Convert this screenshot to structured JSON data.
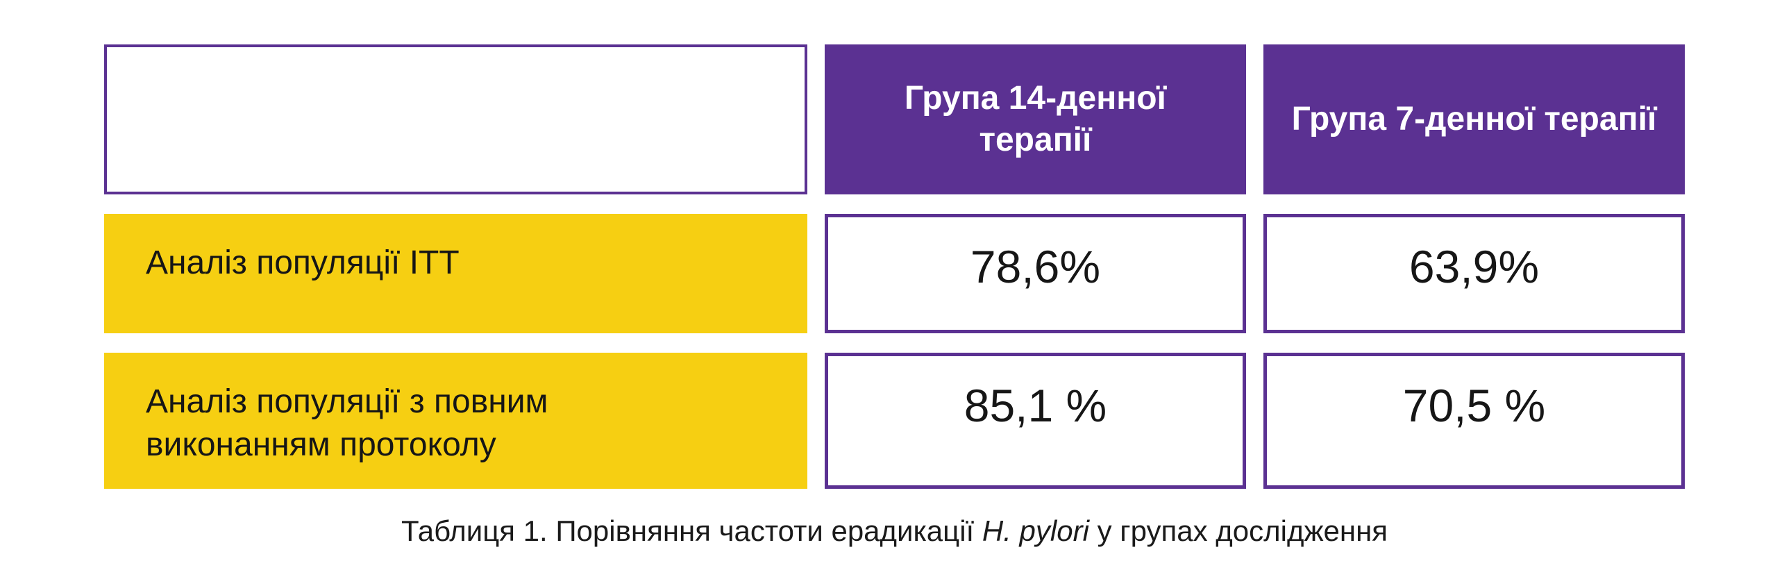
{
  "colors": {
    "purple": "#5B3192",
    "yellow": "#F6CF12",
    "text": "#1A1A1A",
    "header_text": "#FFFFFF"
  },
  "table": {
    "header": {
      "col2": "Група 14-денної терапії",
      "col3": "Група 7-денної терапії"
    },
    "rows": [
      {
        "label": "Аналіз популяції ITT",
        "group14": "78,6%",
        "group7": "63,9%"
      },
      {
        "label": "Аналіз популяції з повним виконанням протоколу",
        "group14": "85,1 %",
        "group7": "70,5 %"
      }
    ]
  },
  "caption": {
    "prefix": "Таблиця 1. Порівняння частоти ерадикації ",
    "italic": "H. pylori",
    "suffix": " у групах дослідження"
  },
  "chart_data": {
    "type": "table",
    "title": "Таблиця 1. Порівняння частоти ерадикації H. pylori у групах дослідження",
    "columns": [
      "",
      "Група 14-денної терапії",
      "Група 7-денної терапії"
    ],
    "rows": [
      [
        "Аналіз популяції ITT",
        "78,6%",
        "63,9%"
      ],
      [
        "Аналіз популяції з повним виконанням протоколу",
        "85,1 %",
        "70,5 %"
      ]
    ],
    "categories": [
      "Аналіз популяції ITT",
      "Аналіз популяції з повним виконанням протоколу"
    ],
    "series": [
      {
        "name": "Група 14-денної терапії",
        "values": [
          78.6,
          85.1
        ]
      },
      {
        "name": "Група 7-денної терапії",
        "values": [
          63.9,
          70.5
        ]
      }
    ],
    "unit": "%"
  }
}
